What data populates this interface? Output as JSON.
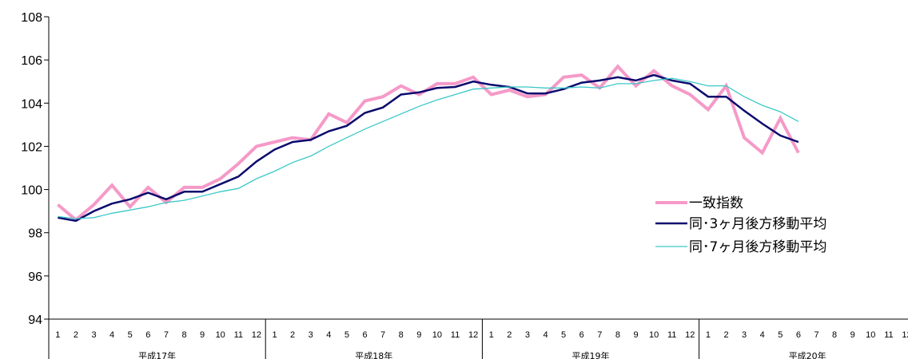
{
  "chart_data": {
    "type": "line",
    "title": "",
    "xlabel": "",
    "ylabel": "",
    "ylim": [
      94,
      108
    ],
    "yticks": [
      "94",
      "96",
      "98",
      "100",
      "102",
      "104",
      "106",
      "108"
    ],
    "month_labels": [
      "1",
      "2",
      "3",
      "4",
      "5",
      "6",
      "7",
      "8",
      "9",
      "10",
      "11",
      "12"
    ],
    "years": [
      "平成17年",
      "平成18年",
      "平成19年",
      "平成20年"
    ],
    "grid": false,
    "legend": "center-right",
    "series": [
      {
        "name": "一致指数",
        "color": "#f59ac8",
        "values": [
          99.3,
          98.6,
          99.3,
          100.2,
          99.2,
          100.1,
          99.4,
          100.1,
          100.1,
          100.5,
          101.2,
          102.0,
          102.2,
          102.4,
          102.3,
          103.5,
          103.1,
          104.1,
          104.3,
          104.8,
          104.4,
          104.9,
          104.9,
          105.2,
          104.4,
          104.6,
          104.3,
          104.4,
          105.2,
          105.3,
          104.7,
          105.7,
          104.8,
          105.5,
          104.8,
          104.4,
          103.7,
          104.8,
          102.4,
          101.7,
          103.3,
          101.7
        ]
      },
      {
        "name": "同･3ヶ月後方移動平均",
        "color": "#0a0a6e",
        "values": [
          98.7,
          98.55,
          99.0,
          99.35,
          99.55,
          99.85,
          99.55,
          99.9,
          99.9,
          100.25,
          100.6,
          101.3,
          101.85,
          102.2,
          102.3,
          102.7,
          102.95,
          103.55,
          103.8,
          104.4,
          104.5,
          104.7,
          104.75,
          105.0,
          104.85,
          104.75,
          104.45,
          104.45,
          104.65,
          104.95,
          105.05,
          105.2,
          105.05,
          105.3,
          105.05,
          104.9,
          104.3,
          104.3,
          103.65,
          103.05,
          102.5,
          102.2
        ]
      },
      {
        "name": "同･7ヶ月後方移動平均",
        "color": "#3cc8c8",
        "values": [
          98.75,
          98.65,
          98.7,
          98.9,
          99.05,
          99.2,
          99.4,
          99.5,
          99.7,
          99.9,
          100.05,
          100.5,
          100.85,
          101.25,
          101.55,
          102.0,
          102.4,
          102.8,
          103.15,
          103.5,
          103.85,
          104.15,
          104.4,
          104.65,
          104.7,
          104.75,
          104.75,
          104.7,
          104.7,
          104.75,
          104.7,
          104.9,
          104.9,
          105.05,
          105.15,
          105.0,
          104.8,
          104.8,
          104.3,
          103.9,
          103.6,
          103.15
        ]
      }
    ]
  }
}
